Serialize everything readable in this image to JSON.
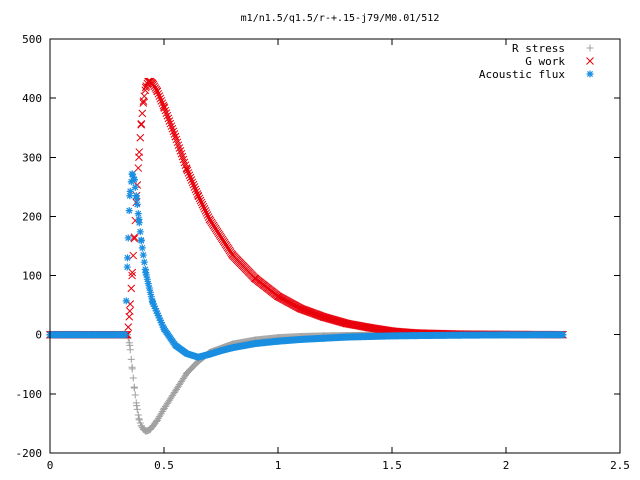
{
  "chart_data": {
    "type": "scatter",
    "title": "m1/n1.5/q1.5/r-+.15-j79/M0.01/512",
    "xlabel": "",
    "ylabel": "",
    "xlim": [
      0,
      2.5
    ],
    "ylim": [
      -200,
      500
    ],
    "x_ticks": [
      0,
      0.5,
      1,
      1.5,
      2,
      2.5
    ],
    "x_tick_labels": [
      "0",
      "0.5",
      "1",
      "1.5",
      "2",
      "2.5"
    ],
    "y_ticks": [
      -200,
      -100,
      0,
      100,
      200,
      300,
      400,
      500
    ],
    "y_tick_labels": [
      "-200",
      "-100",
      "0",
      "100",
      "200",
      "300",
      "400",
      "500"
    ],
    "grid": false,
    "legend_position": "top-right",
    "series": [
      {
        "name": "R stress",
        "marker": "plus",
        "color": "#a0a0a0",
        "x": [
          0,
          0.1,
          0.2,
          0.3,
          0.34,
          0.35,
          0.36,
          0.37,
          0.38,
          0.39,
          0.4,
          0.41,
          0.42,
          0.43,
          0.44,
          0.45,
          0.47,
          0.5,
          0.55,
          0.6,
          0.65,
          0.7,
          0.8,
          0.9,
          1.0,
          1.1,
          1.2,
          1.3,
          1.4,
          1.5,
          1.6,
          1.8,
          2.0,
          2.25
        ],
        "y": [
          0,
          0,
          0,
          0,
          0,
          -18,
          -55,
          -90,
          -120,
          -142,
          -154,
          -160,
          -163,
          -162,
          -160,
          -155,
          -145,
          -125,
          -95,
          -65,
          -45,
          -30,
          -16,
          -9,
          -5,
          -3,
          -2,
          -1.5,
          -1,
          -0.5,
          -0.3,
          -0.1,
          0,
          0
        ]
      },
      {
        "name": "G work",
        "marker": "cross",
        "color": "#e8000b",
        "x": [
          0,
          0.1,
          0.2,
          0.3,
          0.34,
          0.35,
          0.36,
          0.37,
          0.38,
          0.39,
          0.4,
          0.41,
          0.42,
          0.43,
          0.44,
          0.45,
          0.47,
          0.5,
          0.55,
          0.6,
          0.65,
          0.7,
          0.8,
          0.9,
          1.0,
          1.1,
          1.2,
          1.3,
          1.4,
          1.5,
          1.6,
          1.8,
          2.0,
          2.25
        ],
        "y": [
          0,
          0,
          0,
          0,
          0,
          40,
          100,
          165,
          235,
          300,
          355,
          395,
          418,
          428,
          428,
          425,
          412,
          385,
          335,
          280,
          235,
          195,
          135,
          95,
          65,
          44,
          30,
          19,
          12,
          6,
          3,
          1,
          0.5,
          0
        ]
      },
      {
        "name": "Acoustic flux",
        "marker": "star",
        "color": "#1a8ee0",
        "x": [
          0,
          0.1,
          0.2,
          0.3,
          0.33,
          0.34,
          0.35,
          0.36,
          0.37,
          0.38,
          0.39,
          0.4,
          0.42,
          0.45,
          0.5,
          0.55,
          0.6,
          0.65,
          0.7,
          0.75,
          0.8,
          0.9,
          1.0,
          1.1,
          1.2,
          1.3,
          1.4,
          1.5,
          1.6,
          1.8,
          2.0,
          2.25
        ],
        "y": [
          0,
          0,
          0,
          0,
          0,
          130,
          235,
          272,
          262,
          230,
          195,
          160,
          105,
          55,
          10,
          -18,
          -32,
          -38,
          -33,
          -27,
          -22,
          -15,
          -11,
          -8,
          -6,
          -4,
          -3,
          -2,
          -1.5,
          -0.8,
          -0.3,
          0
        ]
      }
    ]
  }
}
